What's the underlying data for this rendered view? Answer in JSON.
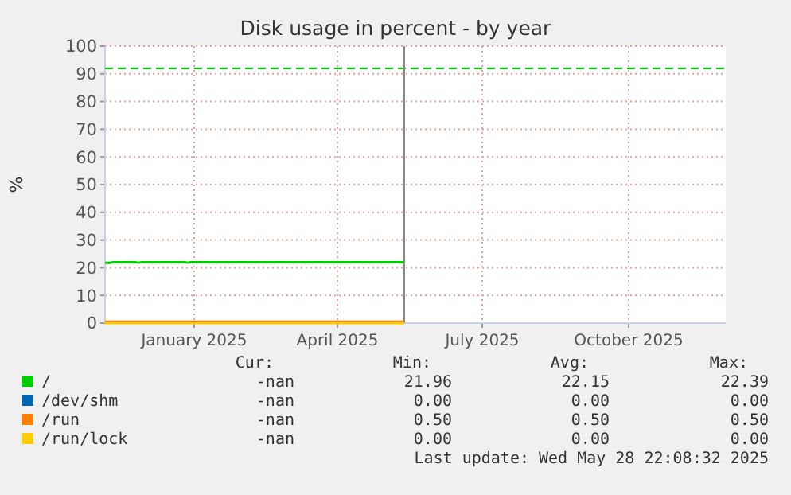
{
  "chart_data": {
    "type": "line",
    "title": "Disk usage in percent - by year",
    "ylabel": "%",
    "xlim": [
      "2024-11-21",
      "2025-12-16"
    ],
    "xticks": [
      {
        "value": "2025-01-16",
        "label": "January 2025"
      },
      {
        "value": "2025-04-16",
        "label": "April 2025"
      },
      {
        "value": "2025-07-16",
        "label": "July 2025"
      },
      {
        "value": "2025-10-16",
        "label": "October 2025"
      }
    ],
    "ylim": [
      0,
      100
    ],
    "yticks": [
      0,
      10,
      20,
      30,
      40,
      50,
      60,
      70,
      80,
      90,
      100
    ],
    "grid": true,
    "legend": "bottom",
    "line_style": "solid",
    "series": [
      {
        "name": "/",
        "color": "#00cc00",
        "x": [
          "2024-11-21",
          "2024-11-24",
          "2024-11-26",
          "2024-12-10",
          "2024-12-12",
          "2024-12-14",
          "2025-01-10",
          "2025-01-12",
          "2025-01-14",
          "2025-03-01",
          "2025-05-28"
        ],
        "values": [
          21.8,
          21.8,
          22,
          22,
          21.8,
          22,
          22,
          21.8,
          22,
          22,
          22
        ]
      },
      {
        "name": "/dev/shm",
        "color": "#0066b3"
      },
      {
        "name": "/run",
        "color": "#ff8000",
        "x": [
          "2024-11-21",
          "2025-05-28"
        ],
        "values": [
          0.5,
          0.5
        ]
      },
      {
        "name": "/run/lock",
        "color": "#ffcc00",
        "x": [
          "2024-11-21",
          "2025-05-28"
        ],
        "values": [
          0,
          0
        ]
      }
    ],
    "ref_lines": [
      {
        "axis": "y",
        "value": 92,
        "color": "#00cc00",
        "line_style": "dashed"
      },
      {
        "axis": "x",
        "value": "2025-05-28",
        "color": "#888888",
        "line_style": "solid"
      }
    ],
    "annotations": [
      "Cur:",
      "Min:",
      "Avg:",
      "Max:",
      "-nan",
      "21.96",
      "22.15",
      "22.39",
      "-nan",
      "0.00",
      "0.00",
      "0.00",
      "-nan",
      "0.50",
      "0.50",
      "0.50",
      "-nan",
      "0.00",
      "0.00",
      "0.00",
      "Last update: Wed May 28 22:08:32 2025"
    ]
  }
}
